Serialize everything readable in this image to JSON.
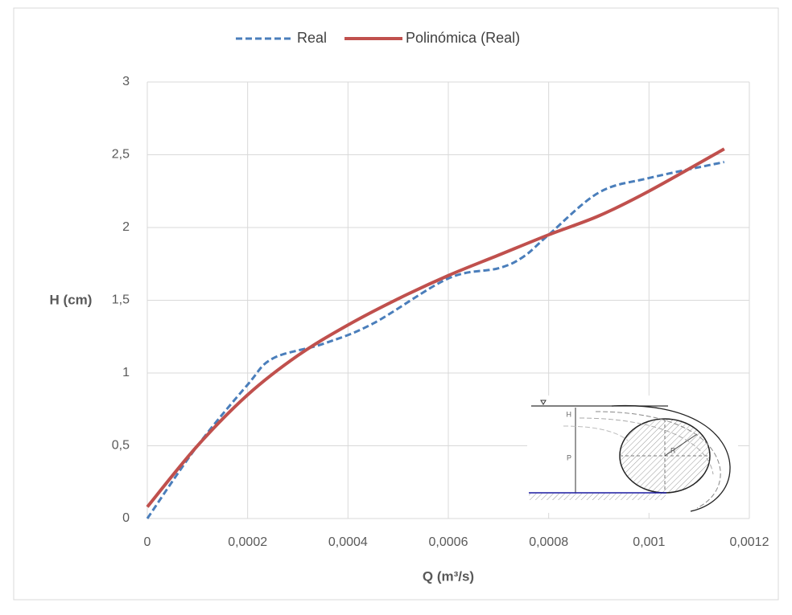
{
  "chart_data": {
    "type": "line",
    "x_label": "Q (m³/s)",
    "y_label": "H (cm)",
    "xlim": [
      0,
      0.0012
    ],
    "ylim": [
      0,
      3
    ],
    "xticks": [
      0,
      {
        "value": 0.0002,
        "label": "0,0002"
      },
      {
        "value": 0.0004,
        "label": "0,0004"
      },
      {
        "value": 0.0006,
        "label": "0,0006"
      },
      {
        "value": 0.0008,
        "label": "0,0008"
      },
      {
        "value": 0.001,
        "label": "0,001"
      },
      {
        "value": 0.0012,
        "label": "0,0012"
      }
    ],
    "yticks": [
      0,
      {
        "value": 0.5,
        "label": "0,5"
      },
      1,
      {
        "value": 1.5,
        "label": "1,5"
      },
      2,
      {
        "value": 2.5,
        "label": "2,5"
      },
      3
    ],
    "grid": true,
    "legend": "top",
    "series": [
      {
        "name": "Real",
        "color": "#4a7ebb",
        "dash": true,
        "x": [
          0,
          0.0001,
          0.0002,
          0.00025,
          0.00035,
          0.00045,
          0.0006,
          0.0007,
          0.00075,
          0.0008,
          0.0009,
          0.001,
          0.00115
        ],
        "values": [
          0,
          0.5,
          0.92,
          1.1,
          1.2,
          1.34,
          1.65,
          1.72,
          1.8,
          1.95,
          2.24,
          2.34,
          2.45
        ]
      },
      {
        "name": "Polinómica (Real)",
        "color": "#c0504d",
        "dash": false,
        "x": [
          0,
          0.0001,
          0.0002,
          0.0003,
          0.0004,
          0.0005,
          0.0006,
          0.0007,
          0.0008,
          0.0009,
          0.001,
          0.00115
        ],
        "values": [
          0.08,
          0.5,
          0.85,
          1.12,
          1.33,
          1.51,
          1.67,
          1.81,
          1.95,
          2.08,
          2.25,
          2.54
        ]
      }
    ],
    "annotations": [
      "H",
      "P",
      "R"
    ]
  }
}
